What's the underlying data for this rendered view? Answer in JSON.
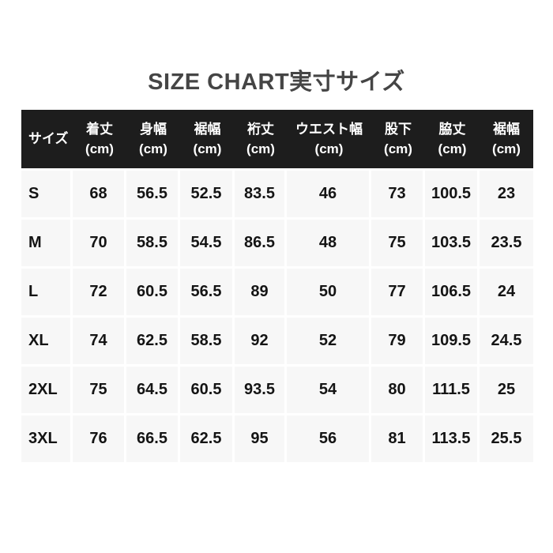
{
  "title": "SIZE CHART実寸サイズ",
  "table": {
    "columns": [
      {
        "label": "サイズ",
        "unit": ""
      },
      {
        "label": "着丈",
        "unit": "(cm)"
      },
      {
        "label": "身幅",
        "unit": "(cm)"
      },
      {
        "label": "裾幅",
        "unit": "(cm)"
      },
      {
        "label": "裄丈",
        "unit": "(cm)"
      },
      {
        "label": "ウエスト幅",
        "unit": "(cm)"
      },
      {
        "label": "股下",
        "unit": "(cm)"
      },
      {
        "label": "脇丈",
        "unit": "(cm)"
      },
      {
        "label": "裾幅",
        "unit": "(cm)"
      }
    ],
    "rows": [
      {
        "size": "S",
        "values": [
          "68",
          "56.5",
          "52.5",
          "83.5",
          "46",
          "73",
          "100.5",
          "23"
        ]
      },
      {
        "size": "M",
        "values": [
          "70",
          "58.5",
          "54.5",
          "86.5",
          "48",
          "75",
          "103.5",
          "23.5"
        ]
      },
      {
        "size": "L",
        "values": [
          "72",
          "60.5",
          "56.5",
          "89",
          "50",
          "77",
          "106.5",
          "24"
        ]
      },
      {
        "size": "XL",
        "values": [
          "74",
          "62.5",
          "58.5",
          "92",
          "52",
          "79",
          "109.5",
          "24.5"
        ]
      },
      {
        "size": "2XL",
        "values": [
          "75",
          "64.5",
          "60.5",
          "93.5",
          "54",
          "80",
          "111.5",
          "25"
        ]
      },
      {
        "size": "3XL",
        "values": [
          "76",
          "66.5",
          "62.5",
          "95",
          "56",
          "81",
          "113.5",
          "25.5"
        ]
      }
    ]
  },
  "chart_data": {
    "type": "table",
    "title": "SIZE CHART実寸サイズ",
    "columns": [
      "サイズ",
      "着丈 (cm)",
      "身幅 (cm)",
      "裾幅 (cm)",
      "裄丈 (cm)",
      "ウエスト幅 (cm)",
      "股下 (cm)",
      "脇丈 (cm)",
      "裾幅 (cm)"
    ],
    "rows": [
      [
        "S",
        68,
        56.5,
        52.5,
        83.5,
        46,
        73,
        100.5,
        23
      ],
      [
        "M",
        70,
        58.5,
        54.5,
        86.5,
        48,
        75,
        103.5,
        23.5
      ],
      [
        "L",
        72,
        60.5,
        56.5,
        89,
        50,
        77,
        106.5,
        24
      ],
      [
        "XL",
        74,
        62.5,
        58.5,
        92,
        52,
        79,
        109.5,
        24.5
      ],
      [
        "2XL",
        75,
        64.5,
        60.5,
        93.5,
        54,
        80,
        111.5,
        25
      ],
      [
        "3XL",
        76,
        66.5,
        62.5,
        95,
        56,
        81,
        113.5,
        25.5
      ]
    ],
    "layout": {
      "header_background": "#1d1d1d",
      "header_text_color": "#ffffff",
      "cell_background": "#f7f7f7",
      "grid_gap_color": "#ffffff"
    }
  },
  "colors": {
    "page_bg": "#ffffff",
    "title_text": "#454545",
    "header_bg": "#1d1d1d",
    "header_text": "#ffffff",
    "cell_bg": "#f7f7f7",
    "body_text": "#141414"
  }
}
